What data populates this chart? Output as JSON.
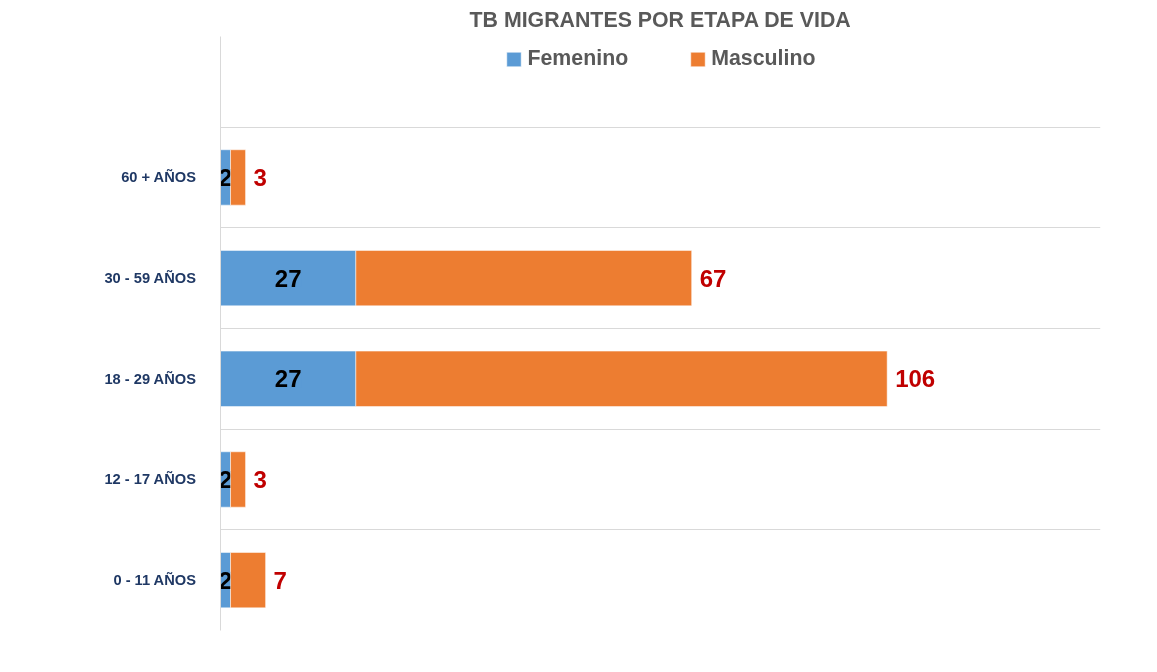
{
  "chart_data": {
    "type": "bar",
    "orientation": "horizontal",
    "stacked": true,
    "title": "TB MIGRANTES POR ETAPA DE VIDA",
    "categories": [
      "60 + AÑOS",
      "30 - 59 AÑOS",
      "18 - 29 AÑOS",
      "12 - 17 AÑOS",
      "0 - 11 AÑOS"
    ],
    "series": [
      {
        "name": "Femenino",
        "color": "#5b9bd5",
        "values": [
          2,
          27,
          27,
          2,
          2
        ]
      },
      {
        "name": "Masculino",
        "color": "#ed7d31",
        "values": [
          3,
          67,
          106,
          3,
          7
        ]
      }
    ],
    "data_labels": true,
    "legend": "top",
    "grid": "y",
    "tick_labels": "y"
  }
}
